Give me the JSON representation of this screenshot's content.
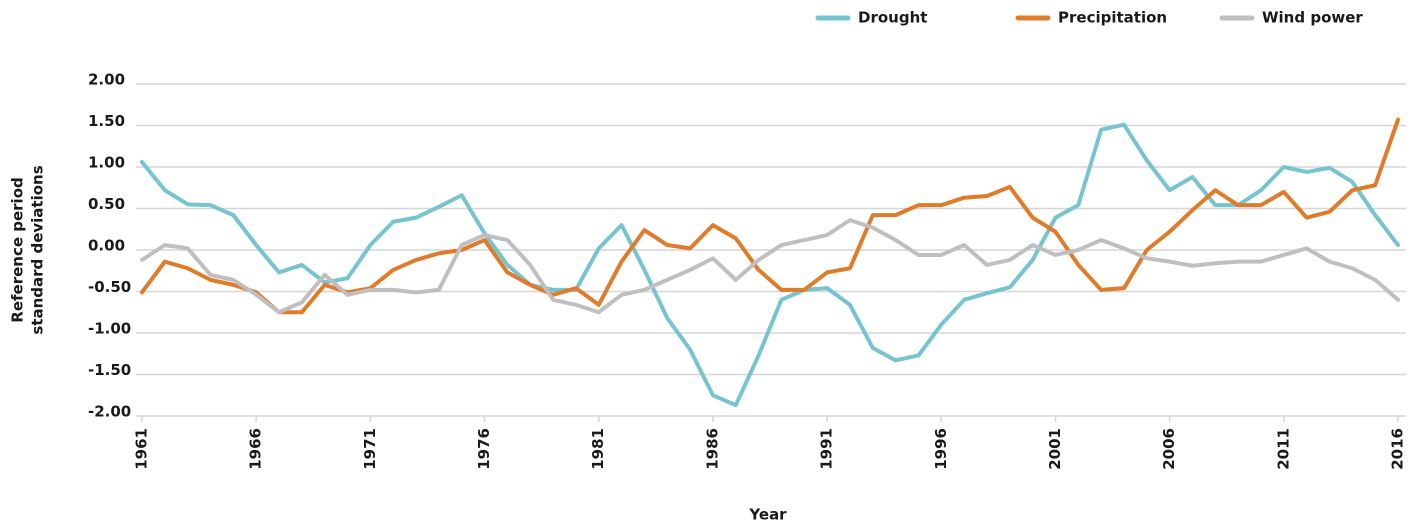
{
  "chart_data": {
    "type": "line",
    "xlabel": "Year",
    "ylabel": [
      "Reference period",
      "standard deviations"
    ],
    "x": [
      1961,
      1962,
      1963,
      1964,
      1965,
      1966,
      1967,
      1968,
      1969,
      1970,
      1971,
      1972,
      1973,
      1974,
      1975,
      1976,
      1977,
      1978,
      1979,
      1980,
      1981,
      1982,
      1983,
      1984,
      1985,
      1986,
      1987,
      1988,
      1989,
      1990,
      1991,
      1992,
      1993,
      1994,
      1995,
      1996,
      1997,
      1998,
      1999,
      2000,
      2001,
      2002,
      2003,
      2004,
      2005,
      2006,
      2007,
      2008,
      2009,
      2010,
      2011,
      2012,
      2013,
      2014,
      2015,
      2016
    ],
    "series": [
      {
        "name": "Drought",
        "color": "#76c4d0",
        "values": [
          1.06,
          0.72,
          0.55,
          0.54,
          0.42,
          0.06,
          -0.27,
          -0.18,
          -0.39,
          -0.34,
          0.06,
          0.34,
          0.39,
          0.52,
          0.66,
          0.2,
          -0.18,
          -0.42,
          -0.48,
          -0.48,
          0.02,
          0.3,
          -0.24,
          -0.82,
          -1.2,
          -1.75,
          -1.87,
          -1.27,
          -0.6,
          -0.48,
          -0.46,
          -0.66,
          -1.18,
          -1.33,
          -1.27,
          -0.9,
          -0.6,
          -0.52,
          -0.45,
          -0.12,
          0.39,
          0.54,
          1.45,
          1.51,
          1.08,
          0.72,
          0.88,
          0.54,
          0.54,
          0.72,
          1.0,
          0.94,
          0.99,
          0.82,
          0.42,
          0.06
        ]
      },
      {
        "name": "Precipitation",
        "color": "#e07b2a",
        "values": [
          -0.51,
          -0.14,
          -0.22,
          -0.36,
          -0.42,
          -0.51,
          -0.75,
          -0.75,
          -0.42,
          -0.51,
          -0.46,
          -0.24,
          -0.12,
          -0.04,
          0,
          0.12,
          -0.27,
          -0.42,
          -0.54,
          -0.46,
          -0.66,
          -0.14,
          0.24,
          0.06,
          0.02,
          0.3,
          0.14,
          -0.24,
          -0.48,
          -0.48,
          -0.27,
          -0.22,
          0.42,
          0.42,
          0.54,
          0.54,
          0.63,
          0.65,
          0.76,
          0.39,
          0.22,
          -0.18,
          -0.48,
          -0.46,
          0,
          0.22,
          0.48,
          0.72,
          0.54,
          0.54,
          0.7,
          0.39,
          0.46,
          0.72,
          0.78,
          1.57
        ]
      },
      {
        "name": "Wind power",
        "color": "#c0bebe",
        "values": [
          -0.12,
          0.06,
          0.02,
          -0.3,
          -0.36,
          -0.54,
          -0.75,
          -0.63,
          -0.3,
          -0.54,
          -0.48,
          -0.48,
          -0.51,
          -0.48,
          0.06,
          0.18,
          0.12,
          -0.18,
          -0.6,
          -0.66,
          -0.75,
          -0.54,
          -0.48,
          -0.36,
          -0.24,
          -0.1,
          -0.36,
          -0.12,
          0.06,
          0.12,
          0.18,
          0.36,
          0.27,
          0.12,
          -0.06,
          -0.06,
          0.06,
          -0.18,
          -0.12,
          0.06,
          -0.06,
          0,
          0.12,
          0.02,
          -0.1,
          -0.14,
          -0.19,
          -0.16,
          -0.14,
          -0.14,
          -0.06,
          0.02,
          -0.14,
          -0.22,
          -0.36,
          -0.6
        ]
      }
    ],
    "xlim": [
      1961,
      2016
    ],
    "xticks": [
      1961,
      1966,
      1971,
      1976,
      1981,
      1986,
      1991,
      1996,
      2001,
      2006,
      2011,
      2016
    ],
    "ylim": [
      -2,
      2
    ],
    "yticks": [
      {
        "value": 2,
        "label": "2.00"
      },
      {
        "value": 1.5,
        "label": "1.50"
      },
      {
        "value": 1,
        "label": "1.00"
      },
      {
        "value": 0.5,
        "label": "0.50"
      },
      {
        "value": 0,
        "label": "0.00"
      },
      {
        "value": -0.5,
        "label": "-0.50"
      },
      {
        "value": -1,
        "label": "-1.00"
      },
      {
        "value": -1.5,
        "label": "-1.50"
      },
      {
        "value": -2,
        "label": "-2.00"
      }
    ],
    "grid": true,
    "legend": "top-right"
  }
}
